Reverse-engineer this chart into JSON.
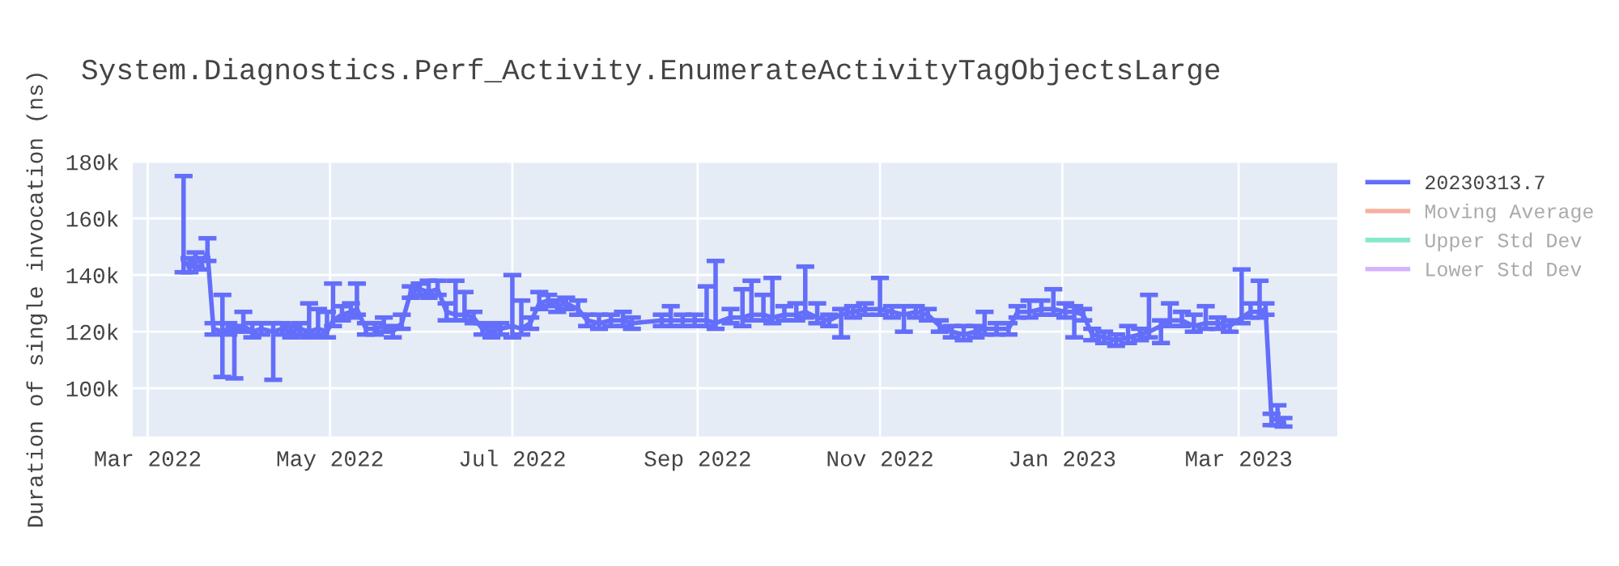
{
  "chart_data": {
    "type": "line",
    "title": "System.Diagnostics.Perf_Activity.EnumerateActivityTagObjectsLarge",
    "ylabel": "Duration of single invocation (ns)",
    "xlim": [
      "2022-02-24",
      "2023-04-03"
    ],
    "ylim": [
      83000,
      180000
    ],
    "xticks": [
      {
        "value": "2022-03-01",
        "label": "Mar 2022"
      },
      {
        "value": "2022-05-01",
        "label": "May 2022"
      },
      {
        "value": "2022-07-01",
        "label": "Jul 2022"
      },
      {
        "value": "2022-09-01",
        "label": "Sep 2022"
      },
      {
        "value": "2022-11-01",
        "label": "Nov 2022"
      },
      {
        "value": "2023-01-01",
        "label": "Jan 2023"
      },
      {
        "value": "2023-03-01",
        "label": "Mar 2023"
      }
    ],
    "yticks": [
      {
        "value": 100000,
        "label": "100k"
      },
      {
        "value": 120000,
        "label": "120k"
      },
      {
        "value": 140000,
        "label": "140k"
      },
      {
        "value": 160000,
        "label": "160k"
      },
      {
        "value": 180000,
        "label": "180k"
      }
    ],
    "grid": true,
    "legend": "top right",
    "marker": "none",
    "line_style": "solid",
    "x": [
      "2022-03-13",
      "2022-03-15",
      "2022-03-17",
      "2022-03-19",
      "2022-03-21",
      "2022-03-23",
      "2022-03-26",
      "2022-03-28",
      "2022-03-30",
      "2022-04-02",
      "2022-04-05",
      "2022-04-08",
      "2022-04-12",
      "2022-04-15",
      "2022-04-18",
      "2022-04-21",
      "2022-04-24",
      "2022-04-27",
      "2022-04-30",
      "2022-05-02",
      "2022-05-05",
      "2022-05-08",
      "2022-05-10",
      "2022-05-13",
      "2022-05-16",
      "2022-05-19",
      "2022-05-22",
      "2022-05-25",
      "2022-05-28",
      "2022-05-31",
      "2022-06-03",
      "2022-06-06",
      "2022-06-09",
      "2022-06-12",
      "2022-06-15",
      "2022-06-18",
      "2022-06-21",
      "2022-06-24",
      "2022-06-27",
      "2022-07-01",
      "2022-07-04",
      "2022-07-07",
      "2022-07-10",
      "2022-07-13",
      "2022-07-16",
      "2022-07-19",
      "2022-07-23",
      "2022-07-26",
      "2022-07-30",
      "2022-08-03",
      "2022-08-07",
      "2022-08-10",
      "2022-08-20",
      "2022-08-23",
      "2022-08-27",
      "2022-08-31",
      "2022-09-04",
      "2022-09-07",
      "2022-09-12",
      "2022-09-16",
      "2022-09-19",
      "2022-09-23",
      "2022-09-26",
      "2022-09-30",
      "2022-10-04",
      "2022-10-07",
      "2022-10-11",
      "2022-10-15",
      "2022-10-19",
      "2022-10-23",
      "2022-10-27",
      "2022-11-01",
      "2022-11-05",
      "2022-11-09",
      "2022-11-13",
      "2022-11-17",
      "2022-11-21",
      "2022-11-25",
      "2022-11-29",
      "2022-12-03",
      "2022-12-06",
      "2022-12-10",
      "2022-12-14",
      "2022-12-17",
      "2022-12-21",
      "2022-12-25",
      "2022-12-29",
      "2023-01-02",
      "2023-01-05",
      "2023-01-08",
      "2023-01-11",
      "2023-01-15",
      "2023-01-19",
      "2023-01-23",
      "2023-01-27",
      "2023-01-30",
      "2023-02-03",
      "2023-02-06",
      "2023-02-10",
      "2023-02-14",
      "2023-02-18",
      "2023-02-22",
      "2023-02-26",
      "2023-03-02",
      "2023-03-05",
      "2023-03-08",
      "2023-03-10",
      "2023-03-12",
      "2023-03-14",
      "2023-03-16"
    ],
    "series": [
      {
        "name": "20230313.7",
        "color": "#636efa",
        "values": [
          145000,
          143000,
          146000,
          144000,
          148000,
          121000,
          120000,
          121000,
          120000,
          122000,
          120000,
          121000,
          120000,
          121000,
          120000,
          121000,
          120000,
          121000,
          120000,
          124000,
          126000,
          127000,
          128000,
          121000,
          121000,
          122000,
          120000,
          123000,
          134000,
          135000,
          134000,
          135000,
          127000,
          126000,
          126000,
          125000,
          121000,
          120000,
          121000,
          122000,
          121000,
          123000,
          130000,
          131000,
          129000,
          130000,
          128000,
          124000,
          123000,
          124000,
          124000,
          123000,
          124000,
          124000,
          124000,
          124000,
          124000,
          123000,
          125000,
          125000,
          126000,
          126000,
          125000,
          126000,
          126000,
          127000,
          125000,
          124000,
          126000,
          127000,
          128000,
          128000,
          127000,
          126000,
          127000,
          126000,
          122000,
          120000,
          119000,
          120000,
          121000,
          121000,
          121000,
          127000,
          127000,
          128000,
          128000,
          127000,
          127000,
          126000,
          119000,
          118000,
          117000,
          118000,
          119000,
          120000,
          122000,
          124000,
          124000,
          122000,
          123000,
          123000,
          122000,
          125000,
          127000,
          127000,
          128000,
          89000,
          89000,
          88000
        ],
        "errors": [
          [
            141000,
            175000
          ],
          [
            141000,
            146000
          ],
          [
            143000,
            148000
          ],
          [
            142000,
            146000
          ],
          [
            145000,
            153000
          ],
          [
            119000,
            123000
          ],
          [
            104000,
            133000
          ],
          [
            119000,
            123000
          ],
          [
            103500,
            122000
          ],
          [
            120000,
            127000
          ],
          [
            118000,
            123000
          ],
          [
            119000,
            123000
          ],
          [
            103000,
            123000
          ],
          [
            119000,
            123000
          ],
          [
            118000,
            122000
          ],
          [
            119000,
            123000
          ],
          [
            118000,
            130000
          ],
          [
            119000,
            128000
          ],
          [
            118000,
            127000
          ],
          [
            122000,
            137000
          ],
          [
            124000,
            129000
          ],
          [
            125000,
            130000
          ],
          [
            126000,
            137000
          ],
          [
            119000,
            123000
          ],
          [
            119000,
            123000
          ],
          [
            120000,
            125000
          ],
          [
            118000,
            122000
          ],
          [
            121000,
            126000
          ],
          [
            132000,
            136000
          ],
          [
            133000,
            137000
          ],
          [
            132000,
            138000
          ],
          [
            133000,
            138000
          ],
          [
            124000,
            130000
          ],
          [
            124000,
            138000
          ],
          [
            124000,
            134000
          ],
          [
            123000,
            127000
          ],
          [
            119000,
            123000
          ],
          [
            118000,
            122000
          ],
          [
            119000,
            123000
          ],
          [
            118000,
            140000
          ],
          [
            119000,
            131000
          ],
          [
            121000,
            125000
          ],
          [
            128000,
            134000
          ],
          [
            129000,
            133000
          ],
          [
            127000,
            131000
          ],
          [
            128000,
            132000
          ],
          [
            126000,
            131000
          ],
          [
            122000,
            126000
          ],
          [
            121000,
            126000
          ],
          [
            122000,
            126000
          ],
          [
            122000,
            127000
          ],
          [
            121000,
            125000
          ],
          [
            122000,
            126000
          ],
          [
            122000,
            129000
          ],
          [
            122000,
            126000
          ],
          [
            122000,
            126000
          ],
          [
            122000,
            136000
          ],
          [
            121000,
            145000
          ],
          [
            123000,
            128000
          ],
          [
            122000,
            135000
          ],
          [
            124000,
            138000
          ],
          [
            124000,
            133000
          ],
          [
            123000,
            139000
          ],
          [
            124000,
            129000
          ],
          [
            124000,
            130000
          ],
          [
            125000,
            143000
          ],
          [
            123000,
            130000
          ],
          [
            122000,
            126000
          ],
          [
            118000,
            128000
          ],
          [
            125000,
            129000
          ],
          [
            126000,
            130000
          ],
          [
            126000,
            139000
          ],
          [
            125000,
            129000
          ],
          [
            120000,
            129000
          ],
          [
            125000,
            129000
          ],
          [
            124000,
            128000
          ],
          [
            120000,
            124000
          ],
          [
            118000,
            122000
          ],
          [
            117000,
            122000
          ],
          [
            118000,
            122000
          ],
          [
            119000,
            127000
          ],
          [
            119000,
            123000
          ],
          [
            119000,
            123000
          ],
          [
            125000,
            129000
          ],
          [
            125000,
            131000
          ],
          [
            126000,
            131000
          ],
          [
            126000,
            135000
          ],
          [
            125000,
            130000
          ],
          [
            118000,
            129000
          ],
          [
            124000,
            128000
          ],
          [
            117000,
            121000
          ],
          [
            116000,
            120000
          ],
          [
            115000,
            119000
          ],
          [
            116000,
            122000
          ],
          [
            117000,
            121000
          ],
          [
            118000,
            133000
          ],
          [
            116000,
            124000
          ],
          [
            122000,
            130000
          ],
          [
            122000,
            127000
          ],
          [
            120000,
            126000
          ],
          [
            121000,
            129000
          ],
          [
            121000,
            125000
          ],
          [
            120000,
            124000
          ],
          [
            123000,
            142000
          ],
          [
            125000,
            130000
          ],
          [
            125000,
            138000
          ],
          [
            126000,
            130000
          ],
          [
            87000,
            91000
          ],
          [
            87000,
            94000
          ],
          [
            86500,
            89500
          ]
        ]
      },
      {
        "name": "Moving Average",
        "color": "#f7b0a3",
        "values": [
          null,
          null,
          null,
          null,
          null,
          null,
          null,
          null,
          null,
          null,
          null,
          null,
          null,
          null,
          null,
          null,
          null,
          null,
          null,
          null,
          null,
          null,
          null,
          null,
          null,
          null,
          null,
          null,
          null,
          null,
          null,
          null,
          null,
          null,
          null,
          null,
          null,
          null,
          null,
          null,
          null,
          null,
          null,
          null,
          null,
          null,
          null,
          null,
          null,
          null,
          null,
          null,
          null,
          null,
          null,
          null,
          null,
          null,
          null,
          null,
          null,
          null,
          null,
          null,
          null,
          null,
          null,
          null,
          null,
          null,
          null,
          null,
          null,
          null,
          null,
          null,
          null,
          null,
          null,
          null,
          null,
          null,
          null,
          null,
          null,
          null,
          null,
          null,
          null,
          null,
          null,
          null,
          null,
          null,
          null,
          null,
          null,
          null,
          null,
          null,
          null,
          null,
          null,
          null,
          null,
          null,
          null,
          null,
          null,
          null
        ]
      },
      {
        "name": "Upper Std Dev",
        "color": "#86e8cd",
        "values": [
          null,
          null,
          null,
          null,
          null,
          null,
          null,
          null,
          null,
          null,
          null,
          null,
          null,
          null,
          null,
          null,
          null,
          null,
          null,
          null,
          null,
          null,
          null,
          null,
          null,
          null,
          null,
          null,
          null,
          null,
          null,
          null,
          null,
          null,
          null,
          null,
          null,
          null,
          null,
          null,
          null,
          null,
          null,
          null,
          null,
          null,
          null,
          null,
          null,
          null,
          null,
          null,
          null,
          null,
          null,
          null,
          null,
          null,
          null,
          null,
          null,
          null,
          null,
          null,
          null,
          null,
          null,
          null,
          null,
          null,
          null,
          null,
          null,
          null,
          null,
          null,
          null,
          null,
          null,
          null,
          null,
          null,
          null,
          null,
          null,
          null,
          null,
          null,
          null,
          null,
          null,
          null,
          null,
          null,
          null,
          null,
          null,
          null,
          null,
          null,
          null,
          null,
          null,
          null,
          null,
          null,
          null,
          null,
          null,
          null
        ]
      },
      {
        "name": "Lower Std Dev",
        "color": "#d3b5fc",
        "values": [
          null,
          null,
          null,
          null,
          null,
          null,
          null,
          null,
          null,
          null,
          null,
          null,
          null,
          null,
          null,
          null,
          null,
          null,
          null,
          null,
          null,
          null,
          null,
          null,
          null,
          null,
          null,
          null,
          null,
          null,
          null,
          null,
          null,
          null,
          null,
          null,
          null,
          null,
          null,
          null,
          null,
          null,
          null,
          null,
          null,
          null,
          null,
          null,
          null,
          null,
          null,
          null,
          null,
          null,
          null,
          null,
          null,
          null,
          null,
          null,
          null,
          null,
          null,
          null,
          null,
          null,
          null,
          null,
          null,
          null,
          null,
          null,
          null,
          null,
          null,
          null,
          null,
          null,
          null,
          null,
          null,
          null,
          null,
          null,
          null,
          null,
          null,
          null,
          null,
          null,
          null,
          null,
          null,
          null,
          null,
          null,
          null,
          null,
          null,
          null,
          null,
          null,
          null,
          null,
          null,
          null,
          null,
          null,
          null,
          null
        ]
      }
    ]
  }
}
